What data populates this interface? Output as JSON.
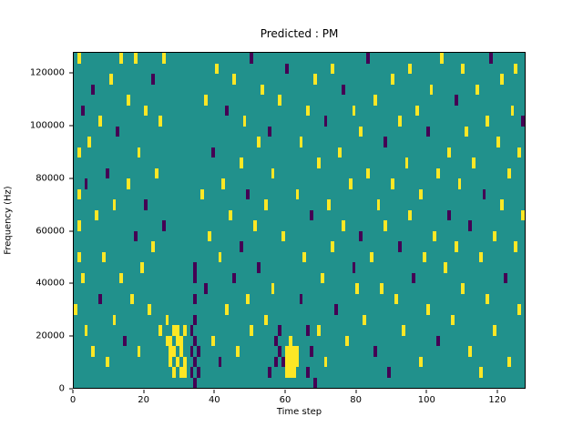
{
  "figure": {
    "title": "Predicted : PM"
  },
  "chart_data": {
    "type": "heatmap",
    "title": "Predicted : PM",
    "xlabel": "Time step",
    "ylabel": "Frequency (Hz)",
    "xlim": [
      0,
      128
    ],
    "ylim": [
      0,
      128000
    ],
    "xticks": [
      0,
      20,
      40,
      60,
      80,
      100,
      120
    ],
    "yticks": [
      0,
      20000,
      40000,
      60000,
      80000,
      100000,
      120000
    ],
    "grid": false,
    "legend": "none",
    "time_steps": 128,
    "freq_bins": 32,
    "freq_bin_hz": 4000,
    "colors": {
      "background": "#21918c",
      "high": "#fde725",
      "low": "#440154"
    },
    "cells_format": "[time_step, freq_bin(4000Hz each), value] value 1 = yellow (high), 0 = dark (low); background = mid teal",
    "cells": [
      [
        26,
        4,
        1
      ],
      [
        26,
        6,
        1
      ],
      [
        27,
        2,
        1
      ],
      [
        27,
        3,
        1
      ],
      [
        27,
        4,
        1
      ],
      [
        28,
        1,
        1
      ],
      [
        28,
        3,
        1
      ],
      [
        28,
        5,
        1
      ],
      [
        29,
        2,
        1
      ],
      [
        29,
        4,
        1
      ],
      [
        29,
        5,
        1
      ],
      [
        30,
        1,
        1
      ],
      [
        30,
        3,
        1
      ],
      [
        30,
        4,
        1
      ],
      [
        31,
        1,
        1
      ],
      [
        31,
        2,
        1
      ],
      [
        31,
        5,
        1
      ],
      [
        33,
        1,
        0
      ],
      [
        33,
        3,
        0
      ],
      [
        33,
        5,
        0
      ],
      [
        34,
        0,
        0
      ],
      [
        34,
        2,
        0
      ],
      [
        34,
        4,
        0
      ],
      [
        34,
        6,
        0
      ],
      [
        34,
        8,
        0
      ],
      [
        34,
        10,
        0
      ],
      [
        34,
        11,
        0
      ],
      [
        35,
        1,
        0
      ],
      [
        35,
        3,
        0
      ],
      [
        60,
        1,
        1
      ],
      [
        60,
        2,
        1
      ],
      [
        60,
        3,
        1
      ],
      [
        61,
        1,
        1
      ],
      [
        61,
        2,
        1
      ],
      [
        61,
        3,
        1
      ],
      [
        61,
        4,
        1
      ],
      [
        62,
        1,
        1
      ],
      [
        62,
        2,
        1
      ],
      [
        62,
        3,
        1
      ],
      [
        63,
        2,
        1
      ],
      [
        63,
        3,
        1
      ],
      [
        57,
        2,
        0
      ],
      [
        57,
        4,
        0
      ],
      [
        58,
        3,
        0
      ],
      [
        58,
        5,
        0
      ],
      [
        59,
        2,
        0
      ],
      [
        66,
        1,
        0
      ],
      [
        66,
        5,
        0
      ],
      [
        67,
        3,
        0
      ],
      [
        68,
        0,
        0
      ],
      [
        1,
        22,
        1
      ],
      [
        1,
        18,
        1
      ],
      [
        1,
        15,
        1
      ],
      [
        1,
        12,
        1
      ],
      [
        0,
        7,
        1
      ],
      [
        1,
        31,
        1
      ],
      [
        2,
        26,
        0
      ],
      [
        2,
        10,
        1
      ],
      [
        3,
        5,
        1
      ],
      [
        3,
        19,
        0
      ],
      [
        4,
        23,
        1
      ],
      [
        5,
        28,
        0
      ],
      [
        5,
        3,
        1
      ],
      [
        6,
        16,
        1
      ],
      [
        7,
        8,
        0
      ],
      [
        7,
        25,
        1
      ],
      [
        8,
        12,
        1
      ],
      [
        9,
        2,
        1
      ],
      [
        9,
        20,
        0
      ],
      [
        10,
        29,
        1
      ],
      [
        11,
        6,
        1
      ],
      [
        11,
        17,
        1
      ],
      [
        12,
        24,
        0
      ],
      [
        13,
        10,
        1
      ],
      [
        13,
        31,
        1
      ],
      [
        14,
        4,
        0
      ],
      [
        15,
        19,
        1
      ],
      [
        15,
        27,
        1
      ],
      [
        16,
        8,
        1
      ],
      [
        17,
        31,
        1
      ],
      [
        17,
        14,
        0
      ],
      [
        18,
        22,
        1
      ],
      [
        18,
        3,
        1
      ],
      [
        19,
        11,
        1
      ],
      [
        20,
        26,
        1
      ],
      [
        20,
        17,
        0
      ],
      [
        21,
        7,
        1
      ],
      [
        22,
        29,
        0
      ],
      [
        22,
        13,
        1
      ],
      [
        23,
        20,
        1
      ],
      [
        24,
        5,
        1
      ],
      [
        24,
        25,
        1
      ],
      [
        25,
        15,
        0
      ],
      [
        25,
        31,
        1
      ],
      [
        36,
        18,
        1
      ],
      [
        37,
        9,
        0
      ],
      [
        37,
        27,
        1
      ],
      [
        38,
        14,
        1
      ],
      [
        39,
        22,
        0
      ],
      [
        39,
        4,
        1
      ],
      [
        40,
        30,
        1
      ],
      [
        41,
        12,
        1
      ],
      [
        41,
        2,
        0
      ],
      [
        42,
        19,
        1
      ],
      [
        43,
        7,
        1
      ],
      [
        43,
        26,
        0
      ],
      [
        44,
        16,
        1
      ],
      [
        45,
        10,
        0
      ],
      [
        45,
        29,
        1
      ],
      [
        46,
        3,
        1
      ],
      [
        47,
        21,
        1
      ],
      [
        47,
        13,
        0
      ],
      [
        48,
        25,
        1
      ],
      [
        49,
        8,
        1
      ],
      [
        49,
        18,
        0
      ],
      [
        50,
        31,
        0
      ],
      [
        50,
        5,
        1
      ],
      [
        51,
        15,
        1
      ],
      [
        52,
        23,
        1
      ],
      [
        52,
        11,
        0
      ],
      [
        53,
        28,
        1
      ],
      [
        54,
        6,
        1
      ],
      [
        54,
        17,
        1
      ],
      [
        55,
        24,
        0
      ],
      [
        55,
        1,
        0
      ],
      [
        56,
        20,
        1
      ],
      [
        56,
        9,
        1
      ],
      [
        58,
        27,
        1
      ],
      [
        59,
        14,
        1
      ],
      [
        60,
        30,
        0
      ],
      [
        63,
        18,
        1
      ],
      [
        64,
        8,
        0
      ],
      [
        64,
        23,
        1
      ],
      [
        65,
        12,
        1
      ],
      [
        66,
        26,
        1
      ],
      [
        67,
        16,
        0
      ],
      [
        68,
        29,
        1
      ],
      [
        69,
        5,
        1
      ],
      [
        69,
        21,
        1
      ],
      [
        70,
        10,
        1
      ],
      [
        71,
        25,
        0
      ],
      [
        71,
        2,
        1
      ],
      [
        72,
        17,
        1
      ],
      [
        73,
        13,
        1
      ],
      [
        73,
        30,
        1
      ],
      [
        74,
        7,
        0
      ],
      [
        75,
        22,
        1
      ],
      [
        76,
        15,
        1
      ],
      [
        76,
        28,
        0
      ],
      [
        77,
        4,
        1
      ],
      [
        78,
        19,
        1
      ],
      [
        79,
        11,
        0
      ],
      [
        79,
        26,
        1
      ],
      [
        80,
        9,
        1
      ],
      [
        81,
        24,
        1
      ],
      [
        81,
        14,
        0
      ],
      [
        82,
        6,
        1
      ],
      [
        83,
        20,
        1
      ],
      [
        83,
        31,
        0
      ],
      [
        84,
        12,
        1
      ],
      [
        85,
        27,
        1
      ],
      [
        85,
        3,
        0
      ],
      [
        86,
        17,
        1
      ],
      [
        87,
        9,
        1
      ],
      [
        88,
        23,
        0
      ],
      [
        88,
        15,
        1
      ],
      [
        89,
        1,
        0
      ],
      [
        90,
        29,
        1
      ],
      [
        90,
        19,
        1
      ],
      [
        91,
        8,
        1
      ],
      [
        92,
        25,
        1
      ],
      [
        92,
        13,
        0
      ],
      [
        93,
        5,
        1
      ],
      [
        94,
        21,
        1
      ],
      [
        95,
        16,
        1
      ],
      [
        95,
        30,
        1
      ],
      [
        96,
        10,
        0
      ],
      [
        97,
        26,
        1
      ],
      [
        98,
        2,
        1
      ],
      [
        98,
        18,
        1
      ],
      [
        99,
        12,
        1
      ],
      [
        100,
        24,
        0
      ],
      [
        100,
        7,
        1
      ],
      [
        101,
        28,
        1
      ],
      [
        102,
        14,
        1
      ],
      [
        103,
        20,
        1
      ],
      [
        103,
        4,
        0
      ],
      [
        104,
        31,
        1
      ],
      [
        105,
        11,
        1
      ],
      [
        106,
        22,
        1
      ],
      [
        106,
        16,
        0
      ],
      [
        107,
        6,
        1
      ],
      [
        108,
        27,
        0
      ],
      [
        108,
        13,
        1
      ],
      [
        109,
        19,
        1
      ],
      [
        110,
        30,
        1
      ],
      [
        110,
        9,
        1
      ],
      [
        111,
        24,
        1
      ],
      [
        112,
        3,
        1
      ],
      [
        112,
        15,
        0
      ],
      [
        113,
        21,
        1
      ],
      [
        114,
        28,
        1
      ],
      [
        115,
        12,
        1
      ],
      [
        115,
        1,
        1
      ],
      [
        116,
        18,
        0
      ],
      [
        117,
        25,
        1
      ],
      [
        117,
        8,
        1
      ],
      [
        118,
        31,
        0
      ],
      [
        119,
        14,
        1
      ],
      [
        119,
        5,
        1
      ],
      [
        120,
        23,
        1
      ],
      [
        121,
        17,
        1
      ],
      [
        121,
        29,
        1
      ],
      [
        122,
        10,
        0
      ],
      [
        123,
        20,
        1
      ],
      [
        123,
        2,
        1
      ],
      [
        124,
        26,
        1
      ],
      [
        125,
        13,
        1
      ],
      [
        125,
        30,
        1
      ],
      [
        126,
        7,
        1
      ],
      [
        126,
        22,
        1
      ],
      [
        127,
        16,
        1
      ],
      [
        127,
        25,
        0
      ]
    ]
  }
}
